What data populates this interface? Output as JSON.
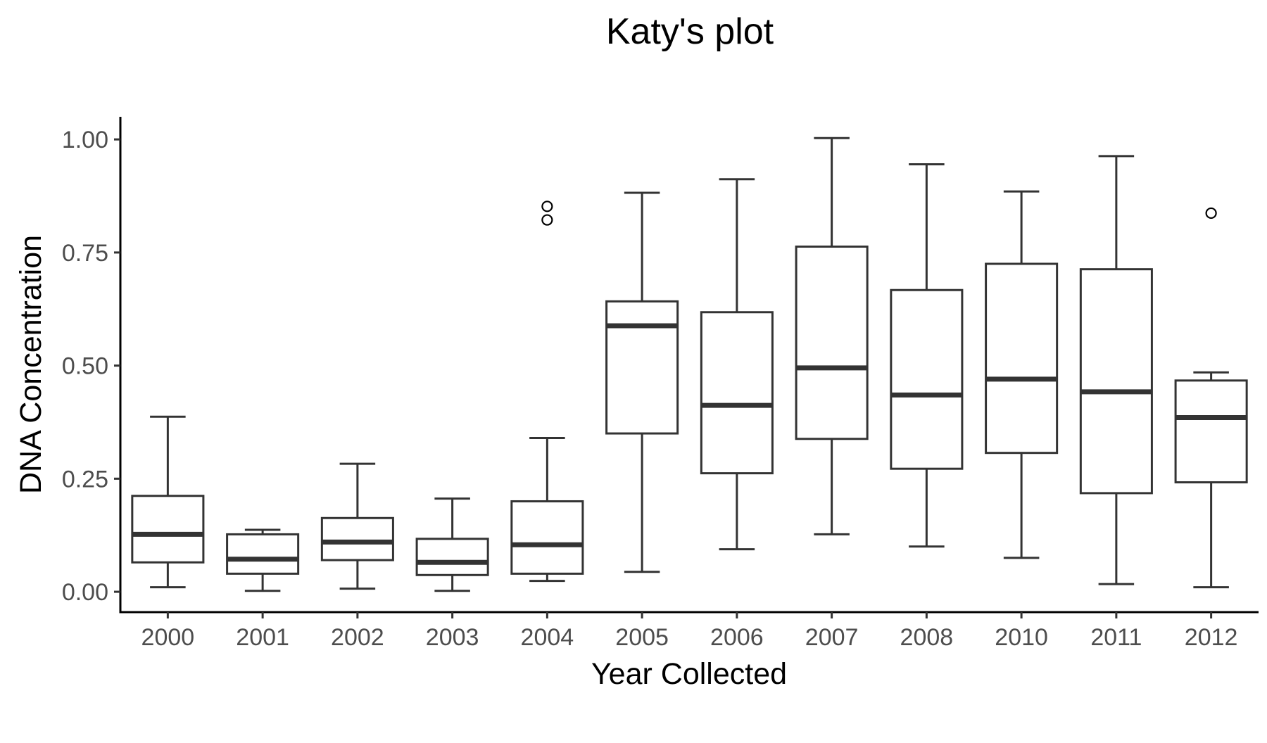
{
  "chart_data": {
    "type": "box",
    "title": "Katy's plot",
    "xlabel": "Year Collected",
    "ylabel": "DNA Concentration",
    "ylim": [
      -0.045,
      1.05
    ],
    "yticks": [
      "0.00",
      "0.25",
      "0.50",
      "0.75",
      "1.00"
    ],
    "ytick_values": [
      0,
      0.25,
      0.5,
      0.75,
      1.0
    ],
    "grid": false,
    "legend": "none",
    "categories": [
      "2000",
      "2001",
      "2002",
      "2003",
      "2004",
      "2005",
      "2006",
      "2007",
      "2008",
      "2010",
      "2011",
      "2012"
    ],
    "boxes": [
      {
        "category": "2000",
        "whisker_low": 0.01,
        "q1": 0.065,
        "median": 0.127,
        "q3": 0.212,
        "whisker_high": 0.387,
        "outliers": []
      },
      {
        "category": "2001",
        "whisker_low": 0.002,
        "q1": 0.04,
        "median": 0.072,
        "q3": 0.127,
        "whisker_high": 0.137,
        "outliers": []
      },
      {
        "category": "2002",
        "whisker_low": 0.007,
        "q1": 0.07,
        "median": 0.11,
        "q3": 0.163,
        "whisker_high": 0.283,
        "outliers": []
      },
      {
        "category": "2003",
        "whisker_low": 0.002,
        "q1": 0.037,
        "median": 0.065,
        "q3": 0.117,
        "whisker_high": 0.206,
        "outliers": []
      },
      {
        "category": "2004",
        "whisker_low": 0.024,
        "q1": 0.04,
        "median": 0.104,
        "q3": 0.2,
        "whisker_high": 0.34,
        "outliers": [
          0.852,
          0.822
        ]
      },
      {
        "category": "2005",
        "whisker_low": 0.044,
        "q1": 0.35,
        "median": 0.588,
        "q3": 0.642,
        "whisker_high": 0.882,
        "outliers": []
      },
      {
        "category": "2006",
        "whisker_low": 0.094,
        "q1": 0.262,
        "median": 0.412,
        "q3": 0.618,
        "whisker_high": 0.912,
        "outliers": []
      },
      {
        "category": "2007",
        "whisker_low": 0.127,
        "q1": 0.338,
        "median": 0.495,
        "q3": 0.763,
        "whisker_high": 1.003,
        "outliers": []
      },
      {
        "category": "2008",
        "whisker_low": 0.1,
        "q1": 0.272,
        "median": 0.435,
        "q3": 0.667,
        "whisker_high": 0.945,
        "outliers": []
      },
      {
        "category": "2010",
        "whisker_low": 0.075,
        "q1": 0.307,
        "median": 0.47,
        "q3": 0.725,
        "whisker_high": 0.885,
        "outliers": []
      },
      {
        "category": "2011",
        "whisker_low": 0.017,
        "q1": 0.218,
        "median": 0.442,
        "q3": 0.713,
        "whisker_high": 0.963,
        "outliers": []
      },
      {
        "category": "2012",
        "whisker_low": 0.01,
        "q1": 0.242,
        "median": 0.385,
        "q3": 0.467,
        "whisker_high": 0.485,
        "outliers": [
          0.837
        ]
      }
    ]
  }
}
